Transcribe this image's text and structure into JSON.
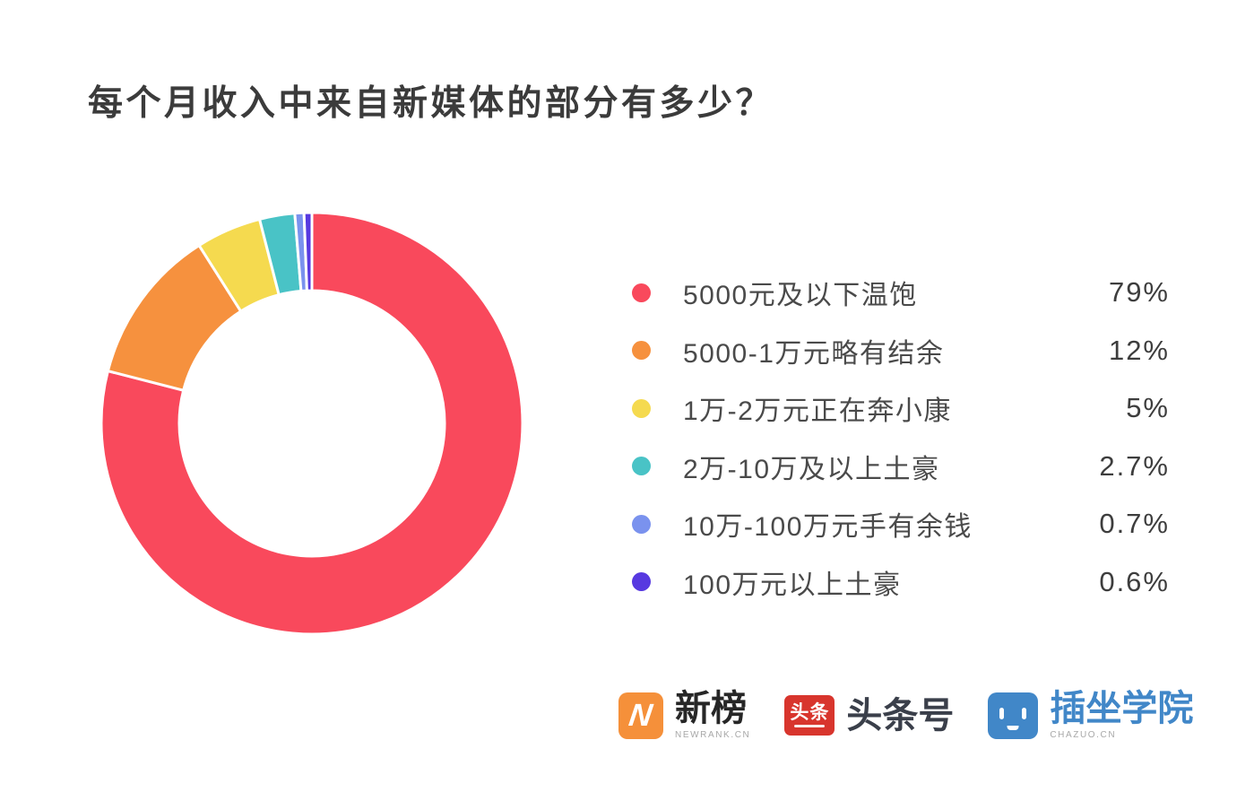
{
  "chart_data": {
    "type": "pie",
    "variant": "donut",
    "title": "每个月收入中来自新媒体的部分有多少？",
    "start_angle_deg": 0,
    "direction": "clockwise",
    "inner_radius_ratio": 0.63,
    "slice_gap_color": "#ffffff",
    "legend_position": "right",
    "items": [
      {
        "label": "5000元及以下温饱",
        "value": 79,
        "display": "79%",
        "color": "#F9495C"
      },
      {
        "label": "5000-1万元略有结余",
        "value": 12,
        "display": "12%",
        "color": "#F6913E"
      },
      {
        "label": "1万-2万元正在奔小康",
        "value": 5,
        "display": "5%",
        "color": "#F5DA4F"
      },
      {
        "label": "2万-10万及以上土豪",
        "value": 2.7,
        "display": "2.7%",
        "color": "#49C3C6"
      },
      {
        "label": "10万-100万元手有余钱",
        "value": 0.7,
        "display": "0.7%",
        "color": "#7A92EE"
      },
      {
        "label": "100万元以上土豪",
        "value": 0.6,
        "display": "0.6%",
        "color": "#5739E0"
      }
    ]
  },
  "footer": {
    "brands": [
      {
        "name": "新榜",
        "subtext": "NEWRANK.CN",
        "icon": "newrank-n-icon",
        "icon_glyph": "N",
        "icon_color": "#F5903A",
        "text_color": "#262626"
      },
      {
        "name": "头条号",
        "subtext": "",
        "icon": "toutiao-icon",
        "icon_glyph": "头条",
        "icon_color": "#D8352D",
        "text_color": "#3A3F4A"
      },
      {
        "name": "插坐学院",
        "subtext": "CHAZUO.CN",
        "icon": "chazuo-face-icon",
        "icon_glyph": "",
        "icon_color": "#4187C8",
        "text_color": "#4187C8"
      }
    ]
  }
}
